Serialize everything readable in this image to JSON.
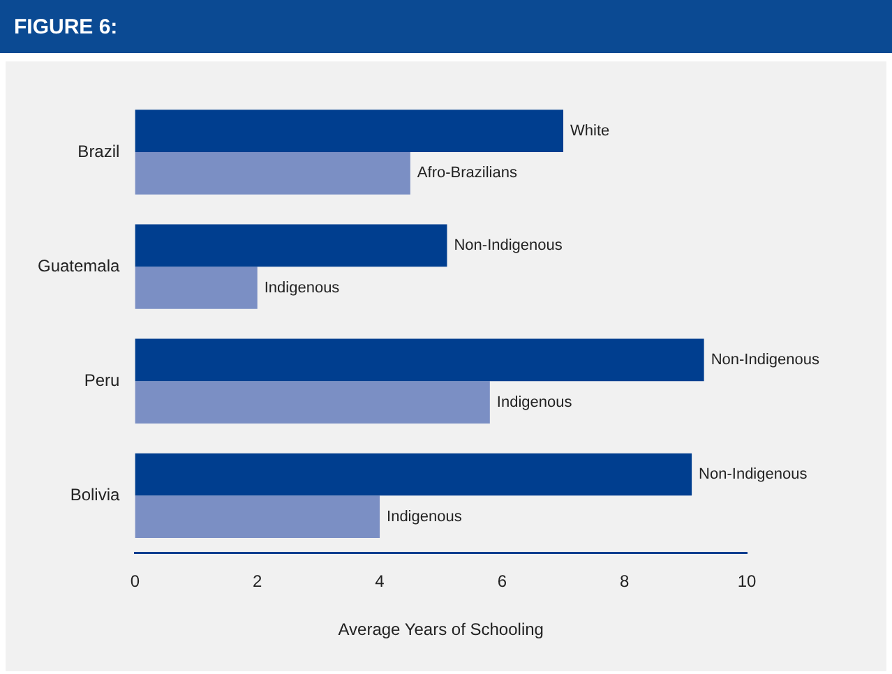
{
  "chart_data": {
    "type": "bar",
    "orientation": "horizontal",
    "title": "FIGURE 6:",
    "xlabel": "Average Years of Schooling",
    "categories": [
      "Brazil",
      "Guatemala",
      "Peru",
      "Bolivia"
    ],
    "series": [
      {
        "color": "#003e8f",
        "values": [
          7.0,
          5.1,
          9.3,
          9.1
        ]
      },
      {
        "color": "#7b8fc4",
        "values": [
          4.5,
          2.0,
          5.8,
          4.0
        ]
      }
    ],
    "xlim": [
      0,
      10
    ],
    "xticks": [
      0,
      2,
      4,
      6,
      8,
      10
    ],
    "grid": false,
    "legend": false,
    "annotations": [
      {
        "text": "White",
        "x": 7.0,
        "y": "Brazil"
      },
      {
        "text": "Afro-Brazilians",
        "x": 4.5,
        "y": "Brazil"
      },
      {
        "text": "Non-Indigenous",
        "x": 5.1,
        "y": "Guatemala"
      },
      {
        "text": "Indigenous",
        "x": 2.0,
        "y": "Guatemala"
      },
      {
        "text": "Non-Indigenous",
        "x": 9.3,
        "y": "Peru"
      },
      {
        "text": "Indigenous",
        "x": 5.8,
        "y": "Peru"
      },
      {
        "text": "Non-Indigenous",
        "x": 9.1,
        "y": "Bolivia"
      },
      {
        "text": "Indigenous",
        "x": 4.0,
        "y": "Bolivia"
      }
    ]
  }
}
